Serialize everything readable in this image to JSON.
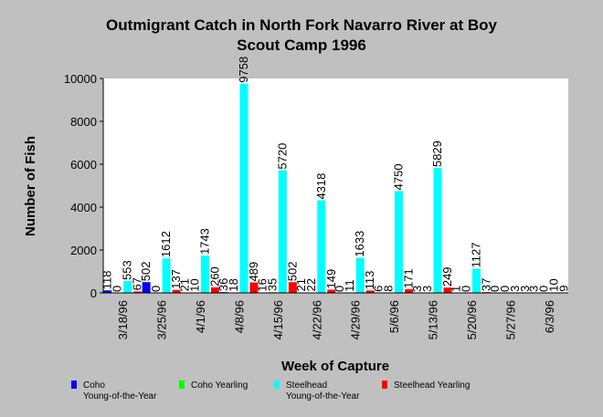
{
  "chart_data": {
    "type": "bar",
    "title_lines": [
      "Outmigrant Catch in North Fork Navarro River at Boy",
      "Scout Camp 1996"
    ],
    "xlabel": "Week of Capture",
    "ylabel": "Number of Fish",
    "ylim": [
      0,
      10000
    ],
    "yticks": [
      0,
      2000,
      4000,
      6000,
      8000,
      10000
    ],
    "grid": false,
    "legend_position": "bottom",
    "categories": [
      "3/18/96",
      "3/25/96",
      "4/1/96",
      "4/8/96",
      "4/15/96",
      "4/22/96",
      "4/29/96",
      "5/6/96",
      "5/13/96",
      "5/20/96",
      "5/27/96",
      "6/3/96"
    ],
    "series": [
      {
        "name_lines": [
          "Coho",
          "Young-of-the-Year"
        ],
        "color": "#0000ff",
        "values": [
          118,
          502,
          21,
          36,
          16,
          21,
          0,
          6,
          3,
          1,
          0,
          3
        ]
      },
      {
        "name_lines": [
          "Coho Yearling"
        ],
        "color": "#00ff00",
        "values": [
          0,
          0,
          10,
          18,
          35,
          22,
          11,
          8,
          3,
          0,
          0,
          0
        ]
      },
      {
        "name_lines": [
          "Steelhead",
          "Young-of-the-Year"
        ],
        "color": "#00ffff",
        "values": [
          553,
          1612,
          1743,
          9758,
          5720,
          4318,
          1633,
          4750,
          5829,
          1127,
          3,
          10
        ]
      },
      {
        "name_lines": [
          "Steelhead Yearling"
        ],
        "color": "#ff0000",
        "values": [
          67,
          137,
          260,
          489,
          502,
          149,
          113,
          171,
          249,
          37,
          3,
          9
        ]
      }
    ]
  }
}
